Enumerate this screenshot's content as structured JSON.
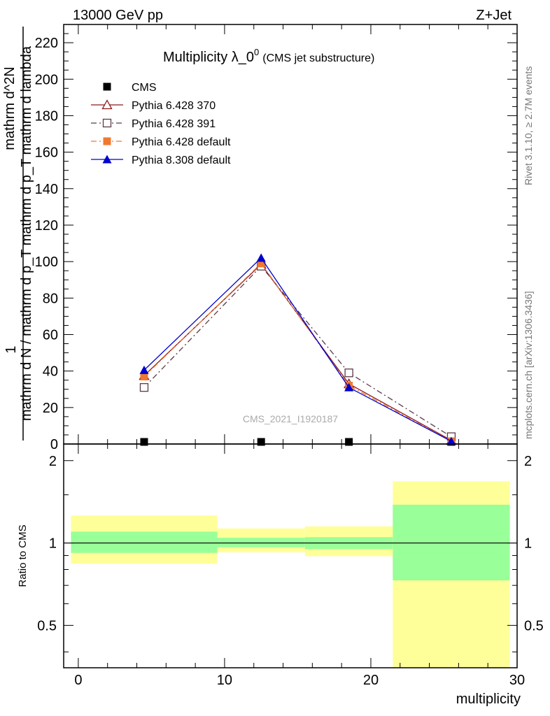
{
  "header": {
    "energy_label": "13000 GeV pp",
    "process_label": "Z+Jet",
    "side_label_top": "Rivet 3.1.10, ≥ 2.7M events",
    "side_label_bottom": "mcplots.cern.ch [arXiv:1306.3436]",
    "watermark": "CMS_2021_I1920187"
  },
  "chart_data": [
    {
      "type": "line",
      "title_main": "Multiplicity λ_0",
      "title_sup": "0",
      "title_note": "(CMS jet substructure)",
      "ylabel_num": "1",
      "ylabel_den": "mathrm d N / mathrm d p_T mathrm d p_T mathrm d lambda",
      "ylabel_top": "mathrm d^2N",
      "xlim": [
        -1,
        30
      ],
      "ylim": [
        0,
        230
      ],
      "yticks": [
        0,
        20,
        40,
        60,
        80,
        100,
        120,
        140,
        160,
        180,
        200,
        220
      ],
      "x": [
        4.5,
        12.5,
        18.5,
        25.5
      ],
      "series": [
        {
          "name": "CMS",
          "color": "#000000",
          "marker": "filled-square",
          "line": "none",
          "values": [
            0.5,
            0.5,
            0.5,
            0.5
          ]
        },
        {
          "name": "Pythia 6.428 370",
          "color": "#8b1a1a",
          "marker": "open-triangle",
          "line": "solid",
          "values": [
            37.5,
            98.5,
            33.0,
            2.0
          ]
        },
        {
          "name": "Pythia 6.428 391",
          "color": "#5c3a4a",
          "marker": "open-square",
          "line": "dash-dot",
          "values": [
            31.0,
            97.5,
            39.0,
            4.0
          ]
        },
        {
          "name": "Pythia 6.428 default",
          "color": "#f07830",
          "marker": "filled-square",
          "line": "dash-dot",
          "values": [
            37.0,
            99.0,
            32.0,
            1.5
          ]
        },
        {
          "name": "Pythia 8.308 default",
          "color": "#0000d0",
          "marker": "filled-triangle",
          "line": "solid",
          "values": [
            40.5,
            102.0,
            31.0,
            1.5
          ]
        }
      ]
    },
    {
      "type": "area",
      "ylabel": "Ratio to CMS",
      "xlabel": "multiplicity",
      "xlim": [
        -1,
        30
      ],
      "ylim": [
        0.35,
        2.3
      ],
      "scale": "log",
      "yticks": [
        0.5,
        1,
        2
      ],
      "xticks": [
        0,
        10,
        20,
        30
      ],
      "reference_line": 1,
      "bins": [
        {
          "xlo": -0.5,
          "xhi": 9.5,
          "stat_lo": 0.92,
          "stat_hi": 1.1,
          "tot_lo": 0.84,
          "tot_hi": 1.26
        },
        {
          "xlo": 9.5,
          "xhi": 15.5,
          "stat_lo": 0.965,
          "stat_hi": 1.045,
          "tot_lo": 0.925,
          "tot_hi": 1.13
        },
        {
          "xlo": 15.5,
          "xhi": 21.5,
          "stat_lo": 0.95,
          "stat_hi": 1.05,
          "tot_lo": 0.895,
          "tot_hi": 1.15
        },
        {
          "xlo": 21.5,
          "xhi": 29.5,
          "stat_lo": 0.73,
          "stat_hi": 1.38,
          "tot_lo": 0.35,
          "tot_hi": 1.68
        }
      ],
      "band_colors": {
        "stat": "#99ff99",
        "total": "#ffff99"
      }
    }
  ]
}
